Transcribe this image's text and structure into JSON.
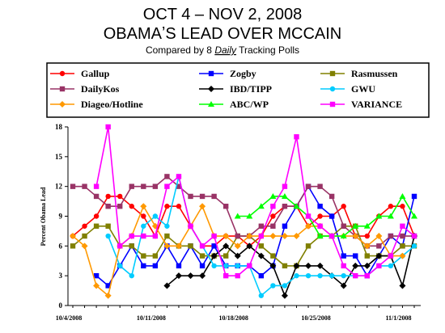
{
  "chart_data": {
    "type": "line",
    "title": [
      "OCT 4 – NOV 2, 2008",
      "OBAMAʼS LEAD OVER MCCAIN"
    ],
    "subtitle": [
      "Compared by 8",
      "Daily",
      "Tracking Polls"
    ],
    "y_label": "Percent Obama Lead",
    "categories": [
      "10/4/2008",
      null,
      null,
      null,
      null,
      null,
      null,
      "10/11/2008",
      null,
      null,
      null,
      null,
      null,
      null,
      "10/18/2008",
      null,
      null,
      null,
      null,
      null,
      null,
      "10/25/2008",
      null,
      null,
      null,
      null,
      null,
      null,
      "11/1/2008",
      null
    ],
    "ylim": [
      0,
      18
    ],
    "yticks": [
      0,
      3,
      6,
      9,
      12,
      15,
      18
    ],
    "series": [
      {
        "name": "Gallup",
        "color": "#ff0000",
        "marker": "circle",
        "values": [
          7,
          8,
          9,
          11,
          11,
          10,
          9,
          7,
          10,
          10,
          8,
          6,
          6,
          7,
          7,
          6,
          7,
          9,
          10,
          10,
          8,
          9,
          9,
          10,
          7,
          7,
          9,
          10,
          10,
          7
        ]
      },
      {
        "name": "Zogby",
        "color": "#0000ff",
        "marker": "square",
        "values": [
          null,
          null,
          3,
          2,
          4,
          6,
          4,
          4,
          6,
          4,
          6,
          4,
          6,
          4,
          4,
          4,
          3,
          4,
          8,
          10,
          12,
          10,
          9,
          5,
          5,
          3,
          5,
          7,
          6,
          11
        ]
      },
      {
        "name": "Rasmussen",
        "color": "#808000",
        "marker": "square",
        "values": [
          6,
          7,
          8,
          8,
          6,
          6,
          5,
          5,
          7,
          6,
          6,
          5,
          5,
          5,
          7,
          7,
          6,
          5,
          4,
          4,
          6,
          7,
          7,
          8,
          8,
          5,
          5,
          5,
          6,
          6
        ]
      },
      {
        "name": "DailyKos",
        "color": "#993366",
        "marker": "square",
        "values": [
          12,
          12,
          11,
          10,
          10,
          12,
          12,
          12,
          13,
          12,
          11,
          11,
          11,
          10,
          7,
          7,
          8,
          8,
          10,
          10,
          12,
          12,
          11,
          8,
          7,
          6,
          6,
          7,
          7,
          7
        ]
      },
      {
        "name": "IBD/TIPP",
        "color": "#000000",
        "marker": "diamond",
        "values": [
          null,
          null,
          null,
          null,
          null,
          null,
          null,
          null,
          2,
          3,
          3,
          3,
          5,
          6,
          5,
          6,
          5,
          4,
          1,
          4,
          4,
          4,
          3,
          2,
          4,
          4,
          5,
          5,
          2,
          7
        ]
      },
      {
        "name": "GWU",
        "color": "#00ccff",
        "marker": "circle",
        "values": [
          null,
          null,
          null,
          7,
          4,
          3,
          8,
          9,
          8,
          13,
          8,
          6,
          4,
          4,
          4,
          4,
          1,
          2,
          2,
          3,
          3,
          3,
          3,
          3,
          3,
          3,
          4,
          4,
          5,
          6
        ]
      },
      {
        "name": "Diageo/Hotline",
        "color": "#ff9900",
        "marker": "diamond",
        "values": [
          7,
          6,
          2,
          1,
          6,
          7,
          10,
          8,
          6,
          6,
          8,
          10,
          7,
          7,
          6,
          7,
          7,
          7,
          7,
          7,
          8,
          8,
          7,
          7,
          7,
          6,
          7,
          5,
          5,
          null
        ]
      },
      {
        "name": "ABC/WP",
        "color": "#00ff00",
        "marker": "triangle",
        "values": [
          null,
          null,
          null,
          null,
          null,
          null,
          null,
          null,
          null,
          null,
          null,
          null,
          null,
          null,
          9,
          9,
          10,
          11,
          11,
          10,
          9,
          7,
          7,
          7,
          8,
          8,
          9,
          9,
          11,
          9
        ]
      },
      {
        "name": "VARIANCE",
        "color": "#ff00ff",
        "marker": "square",
        "values": [
          null,
          null,
          12,
          18,
          6,
          7,
          7,
          7,
          12,
          13,
          8,
          6,
          7,
          3,
          3,
          4,
          7,
          10,
          12,
          17,
          9,
          8,
          7,
          4,
          3,
          3,
          4,
          5,
          8,
          7
        ]
      }
    ]
  }
}
